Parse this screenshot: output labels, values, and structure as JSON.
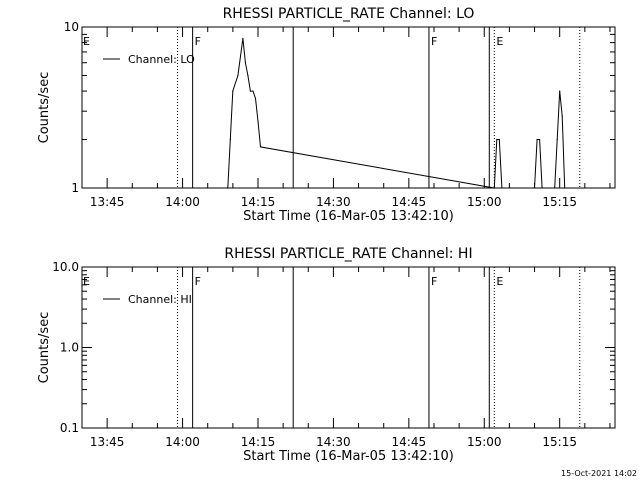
{
  "timestamp": "15-Oct-2021 14:02",
  "chart_data": [
    {
      "type": "line",
      "title": "RHESSI PARTICLE_RATE Channel: LO",
      "xlabel": "Start Time (16-Mar-05 13:42:10)",
      "ylabel": "Counts/sec",
      "y_scale": "log",
      "ylim": [
        1,
        10
      ],
      "y_ticks": [
        1,
        10
      ],
      "y_tick_labels": [
        "1",
        "10"
      ],
      "xlim": [
        "13:40",
        "15:26"
      ],
      "x_ticks": [
        "13:45",
        "14:00",
        "14:15",
        "14:30",
        "14:45",
        "15:00",
        "15:15"
      ],
      "x_tick_labels": [
        "13:45",
        "14:00",
        "14:15",
        "14:30",
        "14:45",
        "15:00",
        "15:15"
      ],
      "legend": {
        "position": "top-left",
        "entries": [
          "Channel: LO"
        ]
      },
      "series": [
        {
          "name": "Channel: LO",
          "x": [
            "14:09:00",
            "14:09:30",
            "14:10:00",
            "14:11:00",
            "14:12:00",
            "14:12:30",
            "14:13:00",
            "14:13:30",
            "14:14:00",
            "14:14:30",
            "14:15:00",
            "14:15:30",
            "15:02:00",
            "15:02:30",
            "15:03:00",
            "15:03:30",
            "15:10:00",
            "15:10:30",
            "15:11:00",
            "15:11:30",
            "15:14:00",
            "15:14:30",
            "15:15:00",
            "15:15:30",
            "15:16:00"
          ],
          "values": [
            1,
            2,
            4,
            5,
            8.5,
            6,
            5,
            4,
            4,
            3.6,
            2.6,
            1.8,
            1,
            2,
            2,
            1,
            1,
            2,
            2,
            1,
            1,
            2,
            4,
            2.8,
            1
          ]
        }
      ],
      "vertical_markers": [
        {
          "time": "13:59",
          "style": "dotted",
          "label": ""
        },
        {
          "time": "14:02",
          "style": "solid",
          "label": "F"
        },
        {
          "time": "14:22",
          "style": "solid",
          "label": ""
        },
        {
          "time": "14:49",
          "style": "solid",
          "label": "F"
        },
        {
          "time": "15:01",
          "style": "solid",
          "label": ""
        },
        {
          "time": "15:02",
          "style": "dotted",
          "label": "E"
        },
        {
          "time": "15:19",
          "style": "dotted",
          "label": ""
        }
      ],
      "corner_label": "E"
    },
    {
      "type": "line",
      "title": "RHESSI PARTICLE_RATE Channel: HI",
      "xlabel": "Start Time (16-Mar-05 13:42:10)",
      "ylabel": "Counts/sec",
      "y_scale": "log",
      "ylim": [
        0.1,
        10
      ],
      "y_ticks": [
        0.1,
        1,
        10
      ],
      "y_tick_labels": [
        "0.1",
        "1.0",
        "10.0"
      ],
      "xlim": [
        "13:40",
        "15:26"
      ],
      "x_ticks": [
        "13:45",
        "14:00",
        "14:15",
        "14:30",
        "14:45",
        "15:00",
        "15:15"
      ],
      "x_tick_labels": [
        "13:45",
        "14:00",
        "14:15",
        "14:30",
        "14:45",
        "15:00",
        "15:15"
      ],
      "legend": {
        "position": "top-left",
        "entries": [
          "Channel: HI"
        ]
      },
      "series": [
        {
          "name": "Channel: HI",
          "x": [],
          "values": []
        }
      ],
      "vertical_markers": [
        {
          "time": "13:59",
          "style": "dotted",
          "label": ""
        },
        {
          "time": "14:02",
          "style": "solid",
          "label": "F"
        },
        {
          "time": "14:22",
          "style": "solid",
          "label": ""
        },
        {
          "time": "14:49",
          "style": "solid",
          "label": "F"
        },
        {
          "time": "15:01",
          "style": "solid",
          "label": ""
        },
        {
          "time": "15:02",
          "style": "dotted",
          "label": "E"
        },
        {
          "time": "15:19",
          "style": "dotted",
          "label": ""
        }
      ],
      "corner_label": "E"
    }
  ]
}
